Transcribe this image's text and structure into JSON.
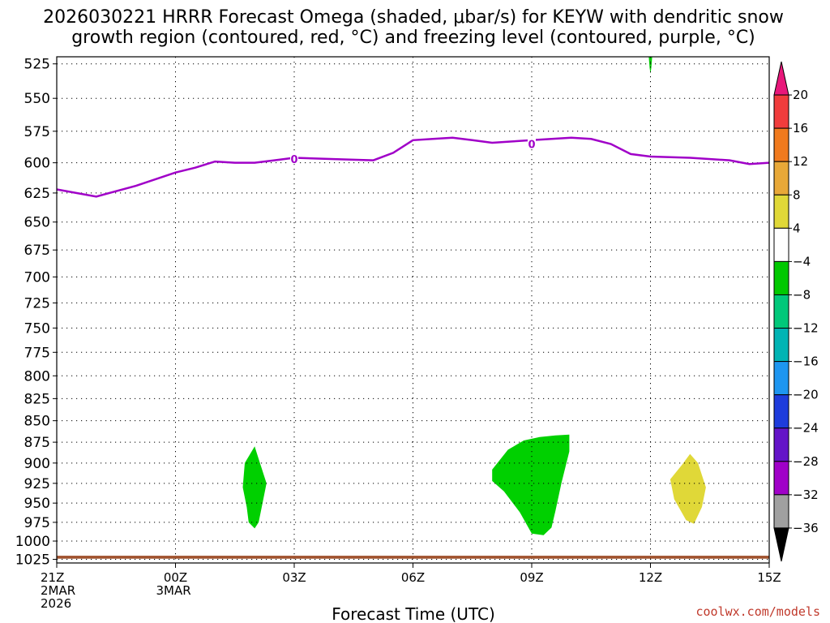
{
  "chart_data": {
    "type": "heatmap",
    "title_lines": [
      "2026030221 HRRR Forecast Omega (shaded, μbar/s) for KEYW with dendritic snow",
      "growth region (contoured, red, °C) and freezing level (contoured, purple, °C)"
    ],
    "xlabel": "Forecast Time (UTC)",
    "credit": "coolwx.com/models",
    "x_range_hours": [
      21,
      39
    ],
    "x_ticks": [
      {
        "hour": 21,
        "lines": [
          "21Z",
          "2MAR",
          "2026"
        ]
      },
      {
        "hour": 24,
        "lines": [
          "00Z",
          "3MAR"
        ]
      },
      {
        "hour": 27,
        "lines": [
          "03Z"
        ]
      },
      {
        "hour": 30,
        "lines": [
          "06Z"
        ]
      },
      {
        "hour": 33,
        "lines": [
          "09Z"
        ]
      },
      {
        "hour": 36,
        "lines": [
          "12Z"
        ]
      },
      {
        "hour": 39,
        "lines": [
          "15Z"
        ]
      }
    ],
    "y_range_hpa": [
      1030,
      520
    ],
    "y_ticks": [
      525,
      550,
      575,
      600,
      625,
      650,
      675,
      700,
      725,
      750,
      775,
      800,
      825,
      850,
      875,
      900,
      925,
      950,
      975,
      1000,
      1025
    ],
    "grid": true,
    "freezing_level": {
      "label": "0",
      "label_positions": [
        {
          "hour": 27.0,
          "p": 597
        },
        {
          "hour": 33.0,
          "p": 585
        }
      ],
      "points": [
        [
          21.0,
          622
        ],
        [
          22.0,
          628
        ],
        [
          23.0,
          619
        ],
        [
          24.0,
          608
        ],
        [
          24.5,
          604
        ],
        [
          25.0,
          599
        ],
        [
          25.5,
          600
        ],
        [
          26.0,
          600
        ],
        [
          26.5,
          598
        ],
        [
          27.0,
          596
        ],
        [
          28.0,
          597
        ],
        [
          29.0,
          598
        ],
        [
          29.5,
          592
        ],
        [
          30.0,
          582
        ],
        [
          30.5,
          581
        ],
        [
          31.0,
          580
        ],
        [
          31.5,
          582
        ],
        [
          32.0,
          584
        ],
        [
          32.5,
          583
        ],
        [
          33.0,
          582
        ],
        [
          33.5,
          581
        ],
        [
          34.0,
          580
        ],
        [
          34.5,
          581
        ],
        [
          35.0,
          585
        ],
        [
          35.5,
          593
        ],
        [
          36.0,
          595
        ],
        [
          37.0,
          596
        ],
        [
          38.0,
          598
        ],
        [
          38.5,
          601
        ],
        [
          39.0,
          600
        ]
      ]
    },
    "omega_regions": [
      {
        "name": "green-blob-0230",
        "bin": "-8 to -4",
        "color": "#00d000",
        "points": [
          [
            26.0,
            880
          ],
          [
            26.1,
            895
          ],
          [
            26.3,
            925
          ],
          [
            26.2,
            950
          ],
          [
            26.1,
            975
          ],
          [
            26.0,
            983
          ],
          [
            25.85,
            975
          ],
          [
            25.8,
            955
          ],
          [
            25.7,
            930
          ],
          [
            25.75,
            900
          ]
        ]
      },
      {
        "name": "green-blob-0900",
        "bin": "-8 to -4",
        "color": "#00d000",
        "points": [
          [
            32.0,
            908
          ],
          [
            32.4,
            884
          ],
          [
            32.8,
            873
          ],
          [
            33.2,
            869
          ],
          [
            33.6,
            867
          ],
          [
            33.95,
            866
          ],
          [
            33.95,
            886
          ],
          [
            33.75,
            925
          ],
          [
            33.6,
            960
          ],
          [
            33.5,
            982
          ],
          [
            33.3,
            992
          ],
          [
            33.0,
            990
          ],
          [
            32.7,
            962
          ],
          [
            32.3,
            935
          ],
          [
            32.0,
            922
          ]
        ]
      },
      {
        "name": "yellow-blob-1300",
        "bin": "4 to 8",
        "color": "#e0d838",
        "points": [
          [
            36.5,
            920
          ],
          [
            36.8,
            902
          ],
          [
            37.0,
            889
          ],
          [
            37.2,
            900
          ],
          [
            37.4,
            930
          ],
          [
            37.3,
            955
          ],
          [
            37.1,
            977
          ],
          [
            36.9,
            972
          ],
          [
            36.6,
            945
          ]
        ]
      },
      {
        "name": "green-tip-1200",
        "bin": "-8 to -4",
        "color": "#00d000",
        "points": [
          [
            35.95,
            518
          ],
          [
            36.05,
            518
          ],
          [
            36.02,
            528
          ],
          [
            36.0,
            532
          ],
          [
            35.98,
            528
          ]
        ]
      }
    ],
    "ground": {
      "color": "#a0522d",
      "top_p_hpa": 1020,
      "bottom_p_hpa": 1024
    },
    "colorbar": {
      "levels": [
        20,
        16,
        12,
        8,
        4,
        -4,
        -8,
        -12,
        -16,
        -20,
        -24,
        -28,
        -32,
        -36
      ],
      "colors": [
        "#e8177a",
        "#f03c3c",
        "#f07a1e",
        "#e8a838",
        "#e0d838",
        "#ffffff",
        "#00c800",
        "#00c87a",
        "#00b4b4",
        "#1e96f0",
        "#1e3cdc",
        "#6414c8",
        "#a000c8",
        "#a0a0a0",
        "#000000"
      ]
    }
  }
}
